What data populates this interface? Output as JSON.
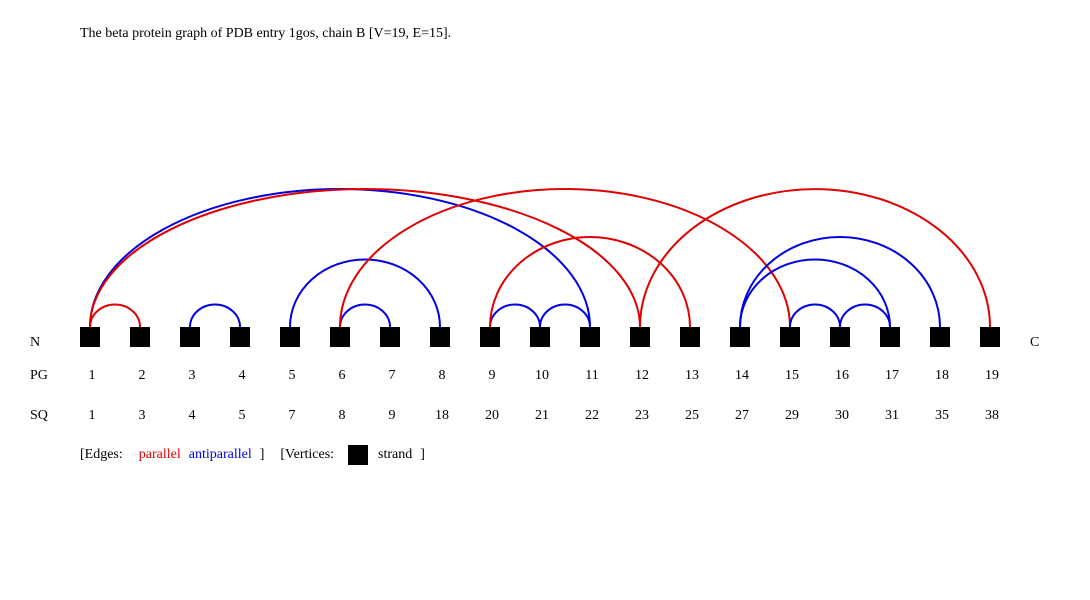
{
  "title": "The beta protein graph of PDB entry 1gos, chain B [V=19, E=15].",
  "row_labels": {
    "n": "N",
    "c": "C",
    "pg": "PG",
    "sq": "SQ"
  },
  "legend": {
    "edges_prefix": "[Edges:",
    "parallel": "parallel",
    "antiparallel": "antiparallel",
    "edges_suffix": "]",
    "vertices_prefix": "[Vertices:",
    "strand": "strand",
    "vertices_suffix": "]"
  },
  "colors": {
    "parallel": "#e00000",
    "antiparallel": "#0000e0",
    "vertex": "#000000"
  },
  "chart_data": {
    "type": "diagram",
    "vertices": [
      {
        "pg": "1",
        "sq": "1"
      },
      {
        "pg": "2",
        "sq": "3"
      },
      {
        "pg": "3",
        "sq": "4"
      },
      {
        "pg": "4",
        "sq": "5"
      },
      {
        "pg": "5",
        "sq": "7"
      },
      {
        "pg": "6",
        "sq": "8"
      },
      {
        "pg": "7",
        "sq": "9"
      },
      {
        "pg": "8",
        "sq": "18"
      },
      {
        "pg": "9",
        "sq": "20"
      },
      {
        "pg": "10",
        "sq": "21"
      },
      {
        "pg": "11",
        "sq": "22"
      },
      {
        "pg": "12",
        "sq": "23"
      },
      {
        "pg": "13",
        "sq": "25"
      },
      {
        "pg": "14",
        "sq": "27"
      },
      {
        "pg": "15",
        "sq": "29"
      },
      {
        "pg": "16",
        "sq": "30"
      },
      {
        "pg": "17",
        "sq": "31"
      },
      {
        "pg": "18",
        "sq": "35"
      },
      {
        "pg": "19",
        "sq": "38"
      }
    ],
    "edges": [
      {
        "from": 1,
        "to": 2,
        "type": "parallel"
      },
      {
        "from": 1,
        "to": 11,
        "type": "antiparallel"
      },
      {
        "from": 1,
        "to": 12,
        "type": "parallel"
      },
      {
        "from": 3,
        "to": 4,
        "type": "antiparallel"
      },
      {
        "from": 5,
        "to": 8,
        "type": "antiparallel"
      },
      {
        "from": 6,
        "to": 7,
        "type": "antiparallel"
      },
      {
        "from": 6,
        "to": 15,
        "type": "parallel"
      },
      {
        "from": 9,
        "to": 10,
        "type": "antiparallel"
      },
      {
        "from": 9,
        "to": 13,
        "type": "parallel"
      },
      {
        "from": 10,
        "to": 11,
        "type": "antiparallel"
      },
      {
        "from": 12,
        "to": 19,
        "type": "parallel"
      },
      {
        "from": 14,
        "to": 17,
        "type": "antiparallel"
      },
      {
        "from": 14,
        "to": 18,
        "type": "antiparallel"
      },
      {
        "from": 15,
        "to": 16,
        "type": "antiparallel"
      },
      {
        "from": 16,
        "to": 17,
        "type": "antiparallel"
      }
    ]
  }
}
